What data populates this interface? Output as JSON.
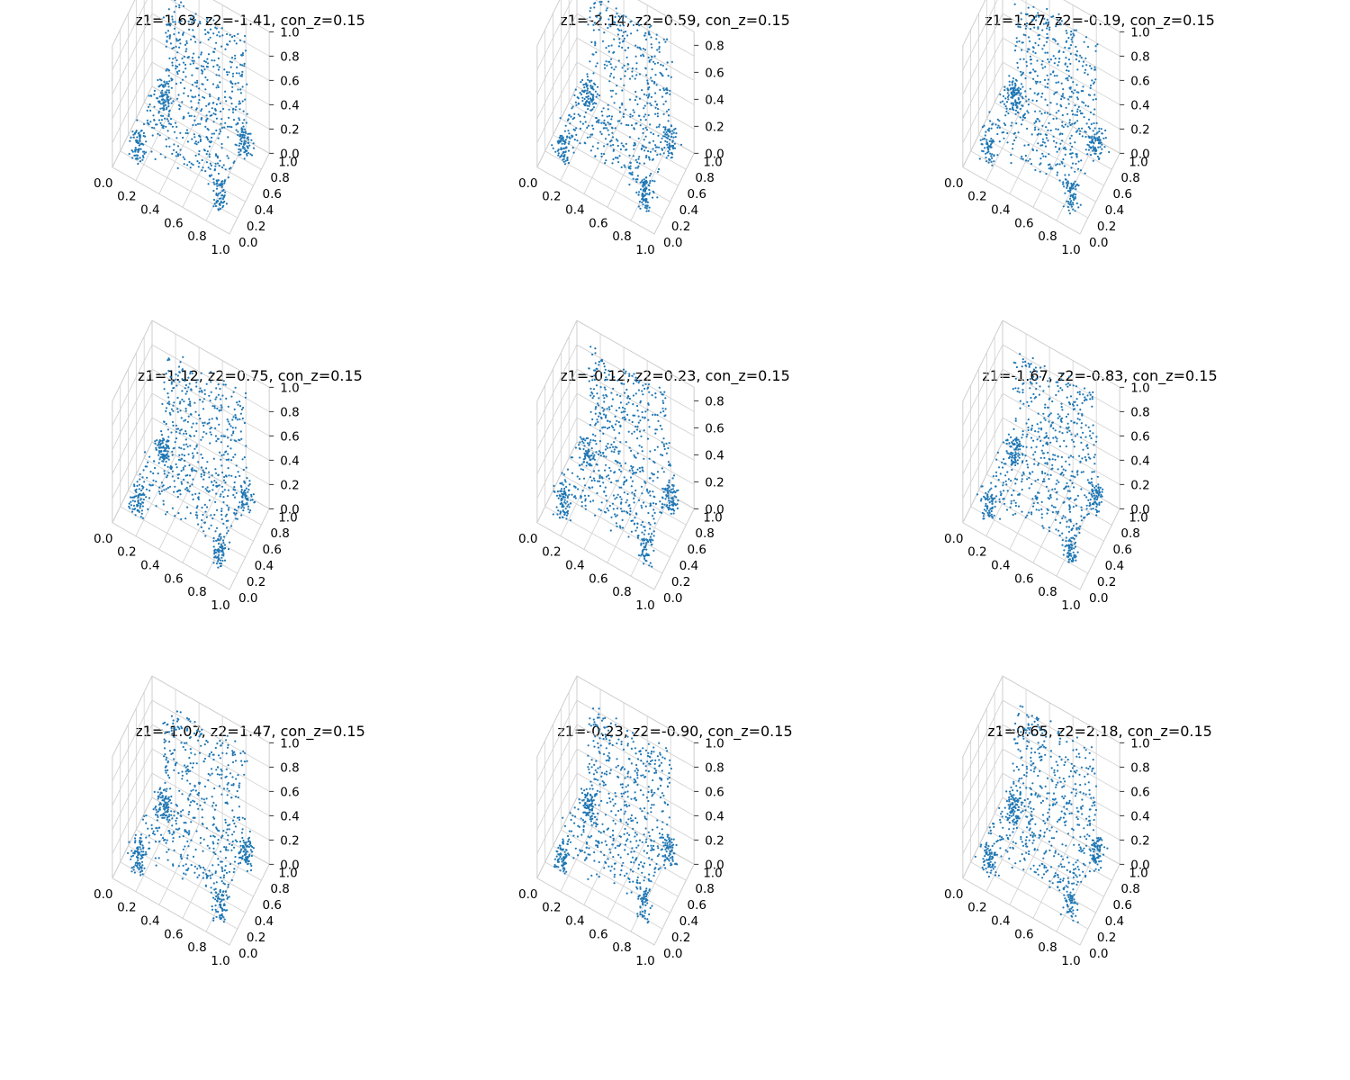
{
  "chart_data": [
    {
      "type": "scatter",
      "title": "z1=1.63, z2=-1.41, con_z=0.15",
      "xticks": [
        "0.0",
        "0.2",
        "0.4",
        "0.6",
        "0.8",
        "1.0"
      ],
      "yticks": [
        "0.0",
        "0.2",
        "0.4",
        "0.6",
        "0.8",
        "1.0"
      ],
      "zticks": [
        "0.0",
        "0.2",
        "0.4",
        "0.6",
        "0.8",
        "1.0"
      ],
      "xlim": [
        0,
        1
      ],
      "ylim": [
        0,
        1
      ],
      "zlim": [
        0,
        1
      ],
      "grid": true,
      "color": "#1f77b4",
      "point_count": 800
    },
    {
      "type": "scatter",
      "title": "z1=-2.14, z2=0.59, con_z=0.15",
      "xticks": [
        "0.0",
        "0.2",
        "0.4",
        "0.6",
        "0.8",
        "1.0"
      ],
      "yticks": [
        "0.0",
        "0.2",
        "0.4",
        "0.6",
        "0.8",
        "1.0"
      ],
      "zticks": [
        "0.0",
        "0.2",
        "0.4",
        "0.6",
        "0.8"
      ],
      "xlim": [
        0,
        1
      ],
      "ylim": [
        0,
        1
      ],
      "zlim": [
        0,
        0.9
      ],
      "grid": true,
      "color": "#1f77b4",
      "point_count": 800
    },
    {
      "type": "scatter",
      "title": "z1=1.27, z2=-0.19, con_z=0.15",
      "xticks": [
        "0.0",
        "0.2",
        "0.4",
        "0.6",
        "0.8",
        "1.0"
      ],
      "yticks": [
        "0.0",
        "0.2",
        "0.4",
        "0.6",
        "0.8",
        "1.0"
      ],
      "zticks": [
        "0.0",
        "0.2",
        "0.4",
        "0.6",
        "0.8",
        "1.0"
      ],
      "xlim": [
        0,
        1
      ],
      "ylim": [
        0,
        1
      ],
      "zlim": [
        0,
        1
      ],
      "grid": true,
      "color": "#1f77b4",
      "point_count": 800
    },
    {
      "type": "scatter",
      "title": "z1=1.12, z2=0.75, con_z=0.15",
      "xticks": [
        "0.0",
        "0.2",
        "0.4",
        "0.6",
        "0.8",
        "1.0"
      ],
      "yticks": [
        "0.0",
        "0.2",
        "0.4",
        "0.6",
        "0.8",
        "1.0"
      ],
      "zticks": [
        "0.0",
        "0.2",
        "0.4",
        "0.6",
        "0.8",
        "1.0"
      ],
      "xlim": [
        0,
        1
      ],
      "ylim": [
        0,
        1
      ],
      "zlim": [
        0,
        1
      ],
      "grid": true,
      "color": "#1f77b4",
      "point_count": 800
    },
    {
      "type": "scatter",
      "title": "z1=-0.12, z2=0.23, con_z=0.15",
      "xticks": [
        "0.0",
        "0.2",
        "0.4",
        "0.6",
        "0.8",
        "1.0"
      ],
      "yticks": [
        "0.0",
        "0.2",
        "0.4",
        "0.6",
        "0.8",
        "1.0"
      ],
      "zticks": [
        "0.0",
        "0.2",
        "0.4",
        "0.6",
        "0.8"
      ],
      "xlim": [
        0,
        1
      ],
      "ylim": [
        0,
        1
      ],
      "zlim": [
        0,
        0.9
      ],
      "grid": true,
      "color": "#1f77b4",
      "point_count": 800
    },
    {
      "type": "scatter",
      "title": "z1=-1.67, z2=-0.83, con_z=0.15",
      "xticks": [
        "0.0",
        "0.2",
        "0.4",
        "0.6",
        "0.8",
        "1.0"
      ],
      "yticks": [
        "0.0",
        "0.2",
        "0.4",
        "0.6",
        "0.8",
        "1.0"
      ],
      "zticks": [
        "0.0",
        "0.2",
        "0.4",
        "0.6",
        "0.8",
        "1.0"
      ],
      "xlim": [
        0,
        1
      ],
      "ylim": [
        0,
        1
      ],
      "zlim": [
        0,
        1
      ],
      "grid": true,
      "color": "#1f77b4",
      "point_count": 800
    },
    {
      "type": "scatter",
      "title": "z1=-1.07, z2=1.47, con_z=0.15",
      "xticks": [
        "0.0",
        "0.2",
        "0.4",
        "0.6",
        "0.8",
        "1.0"
      ],
      "yticks": [
        "0.0",
        "0.2",
        "0.4",
        "0.6",
        "0.8",
        "1.0"
      ],
      "zticks": [
        "0.0",
        "0.2",
        "0.4",
        "0.6",
        "0.8",
        "1.0"
      ],
      "xlim": [
        0,
        1
      ],
      "ylim": [
        0,
        1
      ],
      "zlim": [
        0,
        1
      ],
      "grid": true,
      "color": "#1f77b4",
      "point_count": 800
    },
    {
      "type": "scatter",
      "title": "z1=-0.23, z2=-0.90, con_z=0.15",
      "xticks": [
        "0.0",
        "0.2",
        "0.4",
        "0.6",
        "0.8",
        "1.0"
      ],
      "yticks": [
        "0.0",
        "0.2",
        "0.4",
        "0.6",
        "0.8",
        "1.0"
      ],
      "zticks": [
        "0.0",
        "0.2",
        "0.4",
        "0.6",
        "0.8",
        "1.0"
      ],
      "xlim": [
        0,
        1
      ],
      "ylim": [
        0,
        1
      ],
      "zlim": [
        0,
        1
      ],
      "grid": true,
      "color": "#1f77b4",
      "point_count": 800
    },
    {
      "type": "scatter",
      "title": "z1=0.65, z2=2.18, con_z=0.15",
      "xticks": [
        "0.0",
        "0.2",
        "0.4",
        "0.6",
        "0.8",
        "1.0"
      ],
      "yticks": [
        "0.0",
        "0.2",
        "0.4",
        "0.6",
        "0.8",
        "1.0"
      ],
      "zticks": [
        "0.0",
        "0.2",
        "0.4",
        "0.6",
        "0.8",
        "1.0"
      ],
      "xlim": [
        0,
        1
      ],
      "ylim": [
        0,
        1
      ],
      "zlim": [
        0,
        1
      ],
      "grid": true,
      "color": "#1f77b4",
      "point_count": 800
    }
  ]
}
